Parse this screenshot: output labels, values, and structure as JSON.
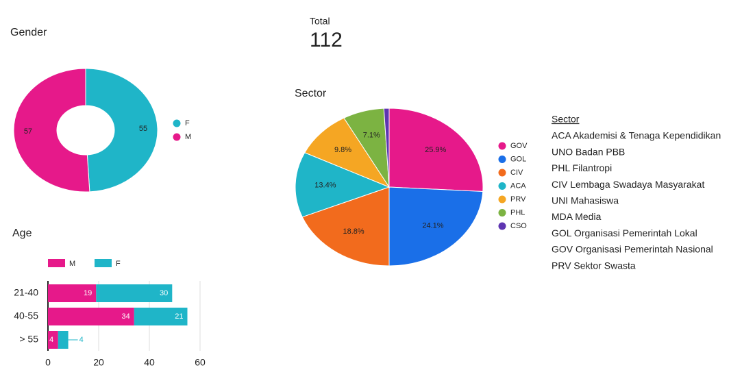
{
  "total": {
    "label": "Total",
    "value": 112
  },
  "chart_data": [
    {
      "type": "donut",
      "title": "Gender",
      "categories": [
        "F",
        "M"
      ],
      "values": [
        55,
        57
      ],
      "colors": [
        "#1fb5c8",
        "#e6198a"
      ]
    },
    {
      "type": "pie",
      "title": "Sector",
      "categories": [
        "GOV",
        "GOL",
        "CIV",
        "ACA",
        "PRV",
        "PHL",
        "CSO"
      ],
      "values": [
        25.9,
        24.1,
        18.8,
        13.4,
        9.8,
        7.1,
        0.9
      ],
      "value_labels": [
        "25.9%",
        "24.1%",
        "18.8%",
        "13.4%",
        "9.8%",
        "7.1%",
        null
      ],
      "colors": [
        "#e6198a",
        "#1a6fe8",
        "#f26b1d",
        "#1fb5c8",
        "#f5a623",
        "#7cb342",
        "#5e35b1"
      ]
    },
    {
      "type": "hbar-stacked",
      "title": "Age",
      "categories": [
        "21-40",
        "40-55",
        "> 55"
      ],
      "series": [
        {
          "name": "M",
          "color": "#e6198a",
          "values": [
            19,
            34,
            4
          ]
        },
        {
          "name": "F",
          "color": "#1fb5c8",
          "values": [
            30,
            21,
            4
          ]
        }
      ],
      "xlim": [
        0,
        60
      ],
      "xticks": [
        0,
        20,
        40,
        60
      ],
      "grid": true
    }
  ],
  "sector_glossary": {
    "title": "Sector",
    "items": [
      "ACA Akademisi & Tenaga Kependidikan",
      "UNO Badan PBB",
      "PHL Filantropi",
      "CIV Lembaga Swadaya Masyarakat",
      "UNI Mahasiswa",
      "MDA Media",
      "GOL Organisasi Pemerintah Lokal",
      "GOV Organisasi Pemerintah Nasional",
      "PRV Sektor Swasta"
    ]
  }
}
